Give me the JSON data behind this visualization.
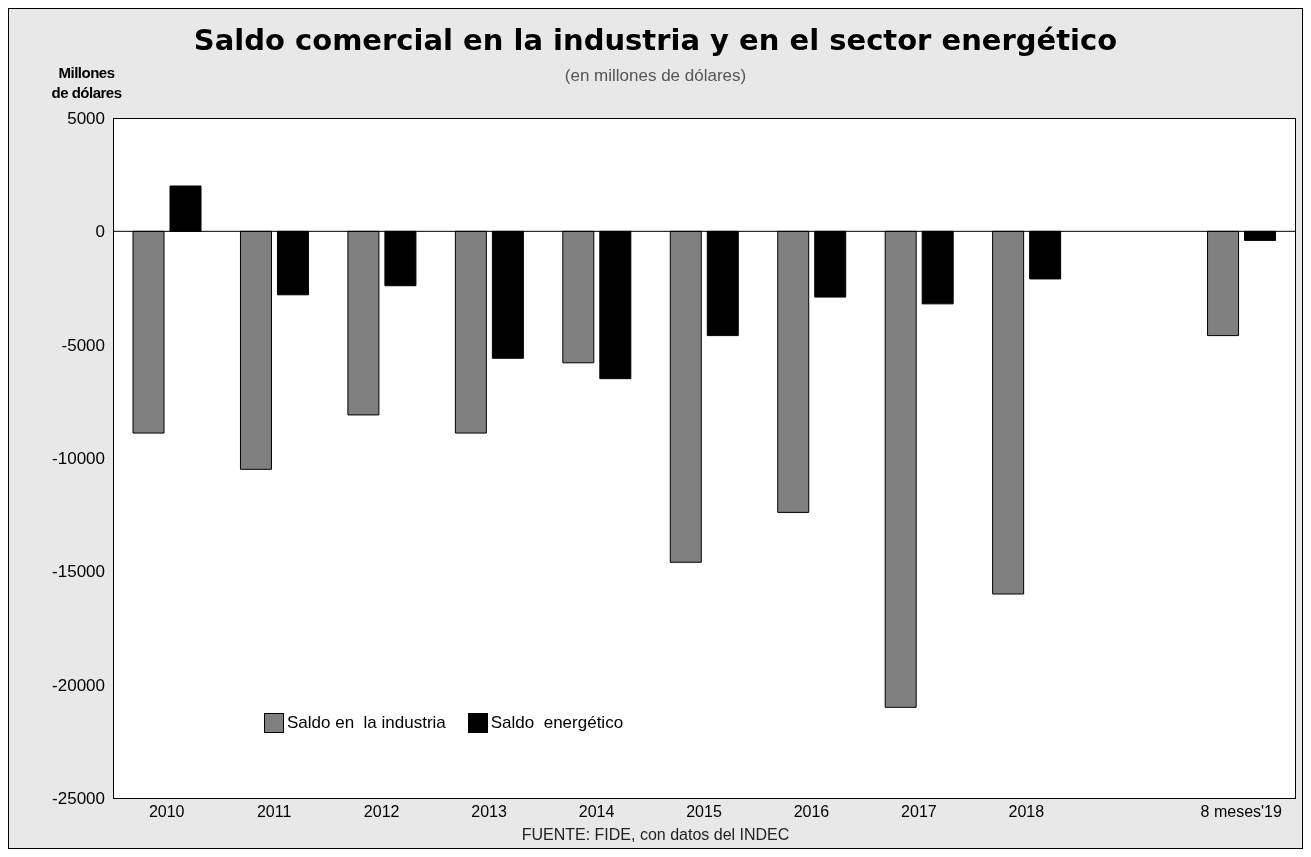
{
  "chart_data": {
    "type": "bar",
    "title": "Saldo comercial en la industria y en el sector energético",
    "subtitle": "(en millones de dólares)",
    "ylabel": "Millones\nde dólares",
    "annotations": [
      "FUENTE: FIDE, con datos del INDEC"
    ],
    "categories": [
      "2010",
      "2011",
      "2012",
      "2013",
      "2014",
      "2015",
      "2016",
      "2017",
      "2018",
      null,
      "8 meses'19"
    ],
    "series": [
      {
        "name": "Saldo en  la industria",
        "color": "#808080",
        "values": [
          -8900,
          -10500,
          -8100,
          -8900,
          -5800,
          -14600,
          -12400,
          -21000,
          -16000,
          null,
          -4600
        ]
      },
      {
        "name": "Saldo  energético",
        "color": "#000000",
        "values": [
          2000,
          -2800,
          -2400,
          -5600,
          -6500,
          -4600,
          -2900,
          -3200,
          -2100,
          null,
          -400
        ]
      }
    ],
    "ylim": [
      -25000,
      5000
    ],
    "yticks": [
      -25000,
      -20000,
      -15000,
      -10000,
      -5000,
      0,
      5000
    ],
    "grid": false,
    "legend": "bottom left",
    "ref_lines": [
      {
        "axis": "y",
        "value": 0,
        "color": "#000000"
      }
    ]
  }
}
